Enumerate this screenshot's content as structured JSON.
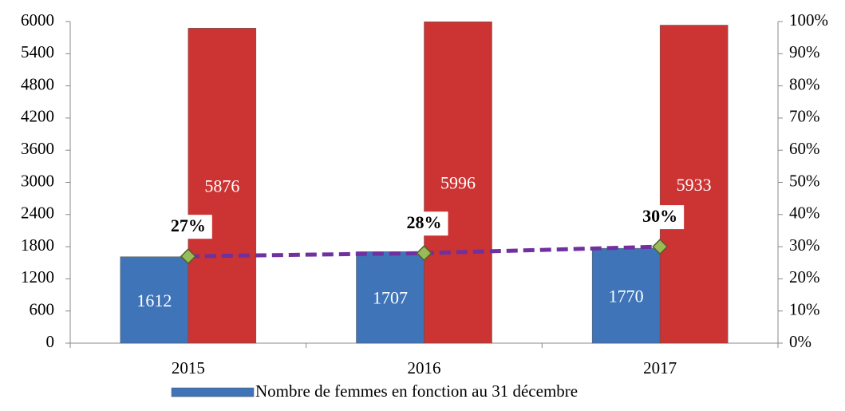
{
  "chart_data": {
    "type": "bar",
    "categories": [
      "2015",
      "2016",
      "2017"
    ],
    "series": [
      {
        "name": "Nombre de femmes en fonction au 31 décembre",
        "color": "#3f74b8",
        "values": [
          1612,
          1707,
          1770
        ]
      },
      {
        "color": "#cc3333",
        "values": [
          5876,
          5996,
          5933
        ]
      },
      {
        "type": "line",
        "axis": "y2",
        "color": "#7030a0",
        "marker_color": "#9bbb59",
        "values": [
          27,
          28,
          30
        ],
        "value_labels": [
          "27%",
          "28%",
          "30%"
        ]
      }
    ],
    "ylim": [
      0,
      6000
    ],
    "yticks": [
      0,
      600,
      1200,
      1800,
      2400,
      3000,
      3600,
      4200,
      4800,
      5400,
      6000
    ],
    "y2lim": [
      0,
      100
    ],
    "y2ticks": [
      {
        "value": 0,
        "label": "0%"
      },
      {
        "value": 10,
        "label": "10%"
      },
      {
        "value": 20,
        "label": "20%"
      },
      {
        "value": 30,
        "label": "30%"
      },
      {
        "value": 40,
        "label": "40%"
      },
      {
        "value": 50,
        "label": "50%"
      },
      {
        "value": 60,
        "label": "60%"
      },
      {
        "value": 70,
        "label": "70%"
      },
      {
        "value": 80,
        "label": "80%"
      },
      {
        "value": 90,
        "label": "90%"
      },
      {
        "value": 100,
        "label": "100%"
      }
    ],
    "grid": false,
    "legend": "bottom"
  }
}
